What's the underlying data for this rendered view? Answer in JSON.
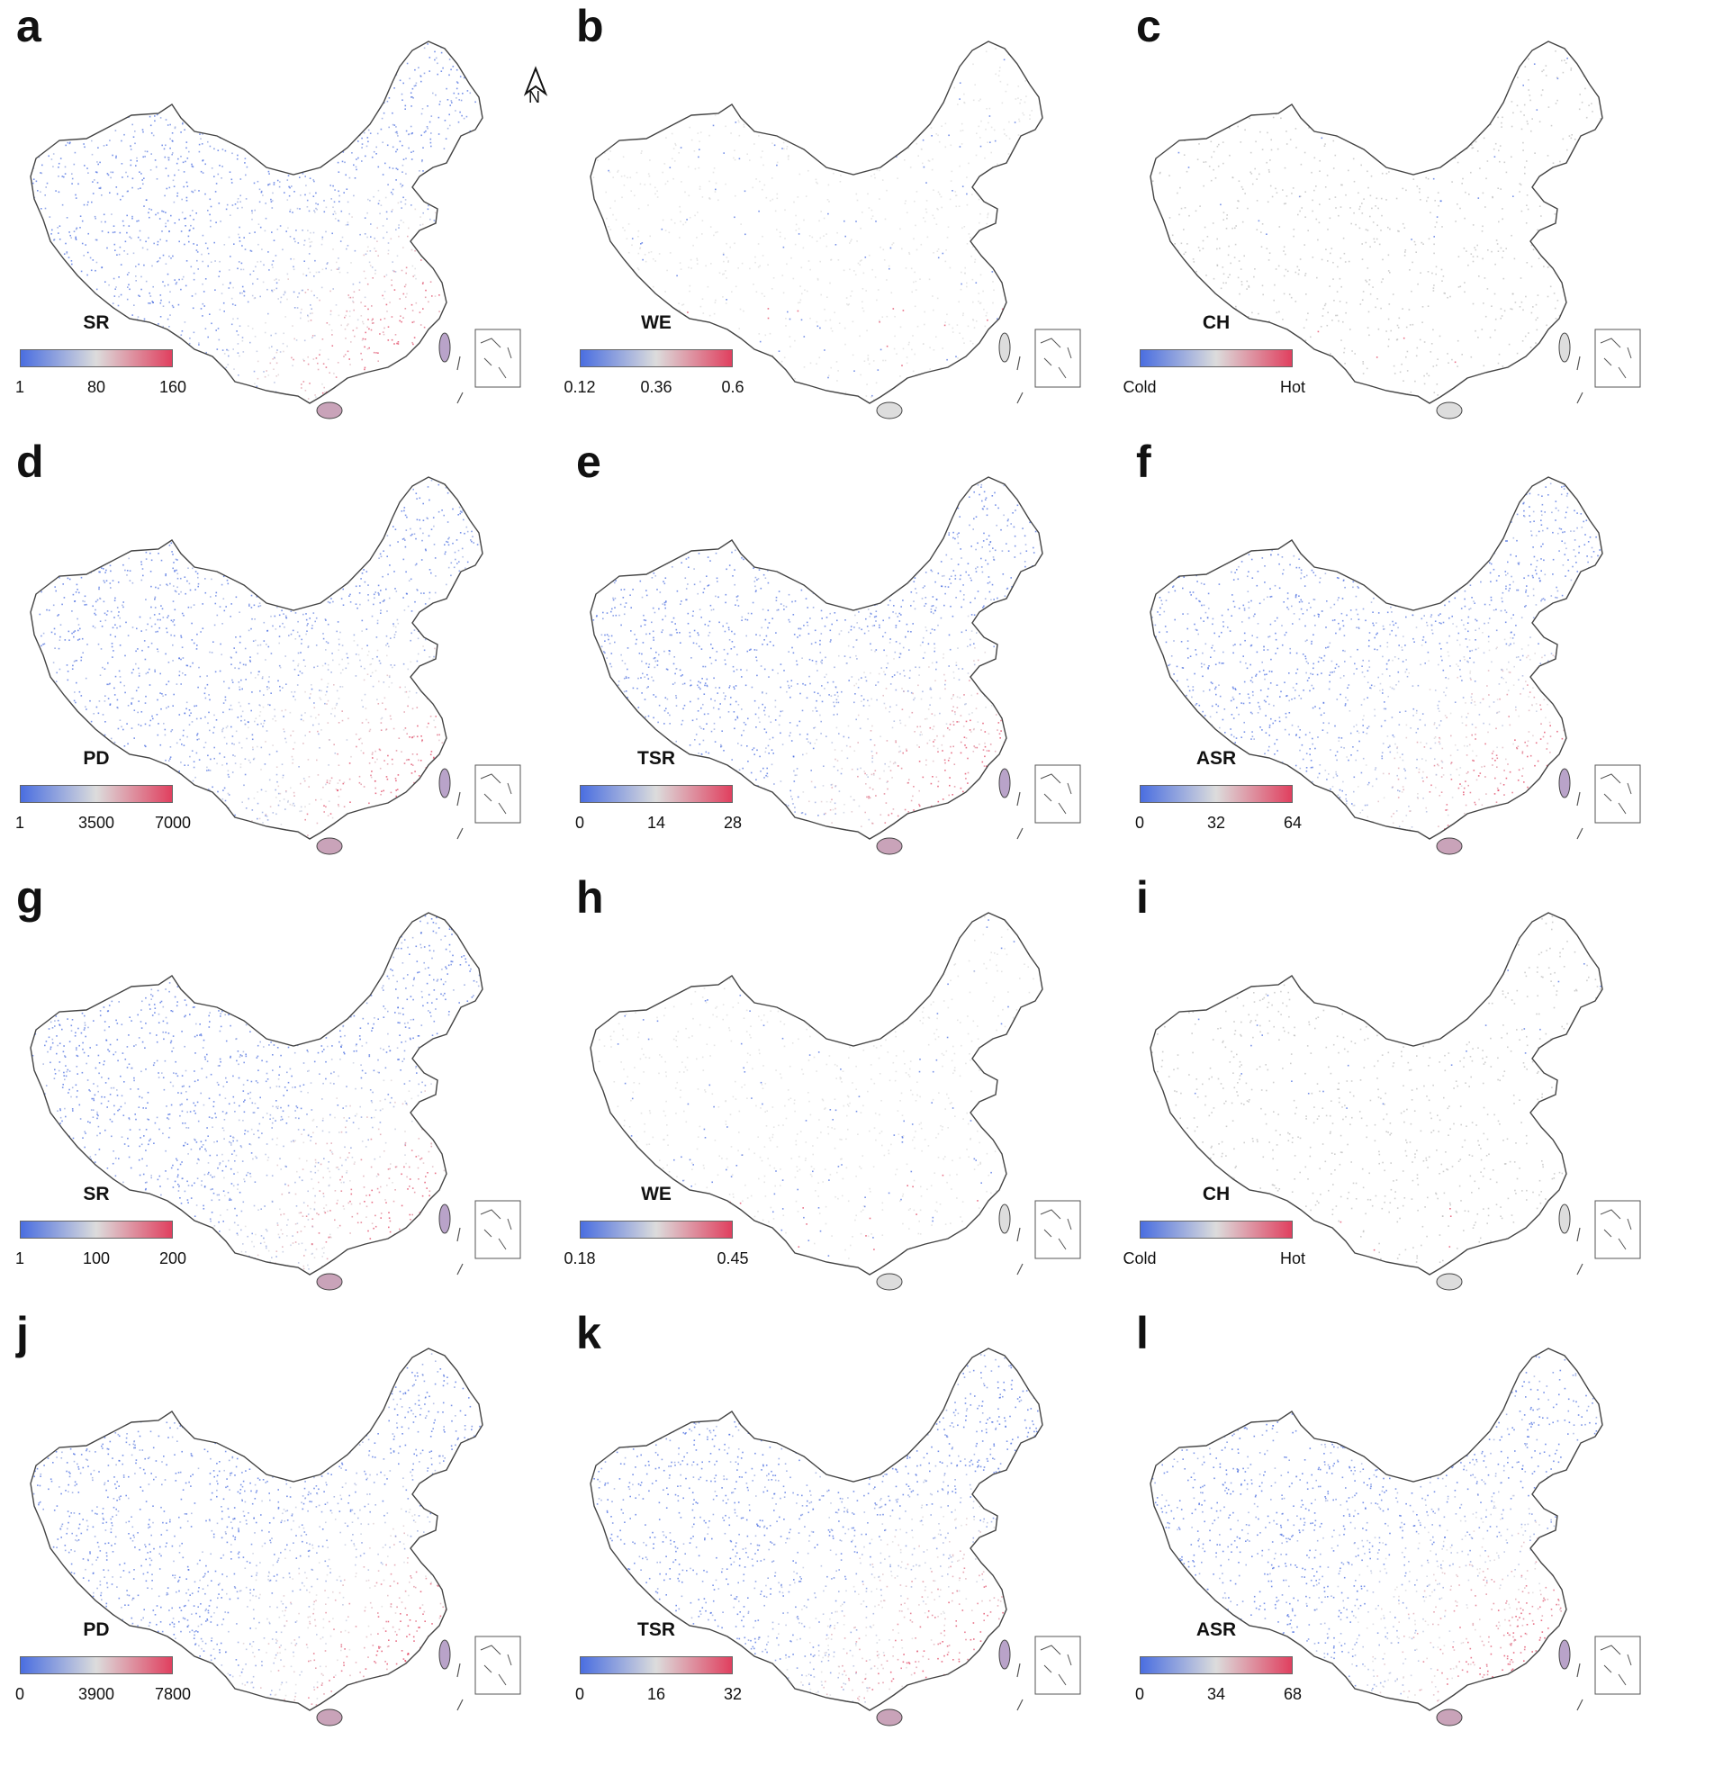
{
  "north_label": "N",
  "colors": {
    "low": "#4a6ee0",
    "mid": "#dcdcdc",
    "high": "#e0405f",
    "outline": "#444444",
    "neutral": "#bdbdbd"
  },
  "panels": [
    {
      "letter": "a",
      "var": "SR",
      "ticks": [
        "1",
        "80",
        "160"
      ],
      "pattern": "diverging"
    },
    {
      "letter": "b",
      "var": "WE",
      "ticks": [
        "0.12",
        "0.36",
        "0.6"
      ],
      "pattern": "faint"
    },
    {
      "letter": "c",
      "var": "CH",
      "ticks": [
        "Cold",
        "Hot"
      ],
      "pattern": "grey"
    },
    {
      "letter": "d",
      "var": "PD",
      "ticks": [
        "1",
        "3500",
        "7000"
      ],
      "pattern": "diverging"
    },
    {
      "letter": "e",
      "var": "TSR",
      "ticks": [
        "0",
        "14",
        "28"
      ],
      "pattern": "diverging"
    },
    {
      "letter": "f",
      "var": "ASR",
      "ticks": [
        "0",
        "32",
        "64"
      ],
      "pattern": "diverging"
    },
    {
      "letter": "g",
      "var": "SR",
      "ticks": [
        "1",
        "100",
        "200"
      ],
      "pattern": "diverging"
    },
    {
      "letter": "h",
      "var": "WE",
      "ticks": [
        "0.18",
        "0.45"
      ],
      "pattern": "faint"
    },
    {
      "letter": "i",
      "var": "CH",
      "ticks": [
        "Cold",
        "Hot"
      ],
      "pattern": "grey"
    },
    {
      "letter": "j",
      "var": "PD",
      "ticks": [
        "0",
        "3900",
        "7800"
      ],
      "pattern": "diverging"
    },
    {
      "letter": "k",
      "var": "TSR",
      "ticks": [
        "0",
        "16",
        "32"
      ],
      "pattern": "diverging"
    },
    {
      "letter": "l",
      "var": "ASR",
      "ticks": [
        "0",
        "34",
        "68"
      ],
      "pattern": "diverging"
    }
  ]
}
